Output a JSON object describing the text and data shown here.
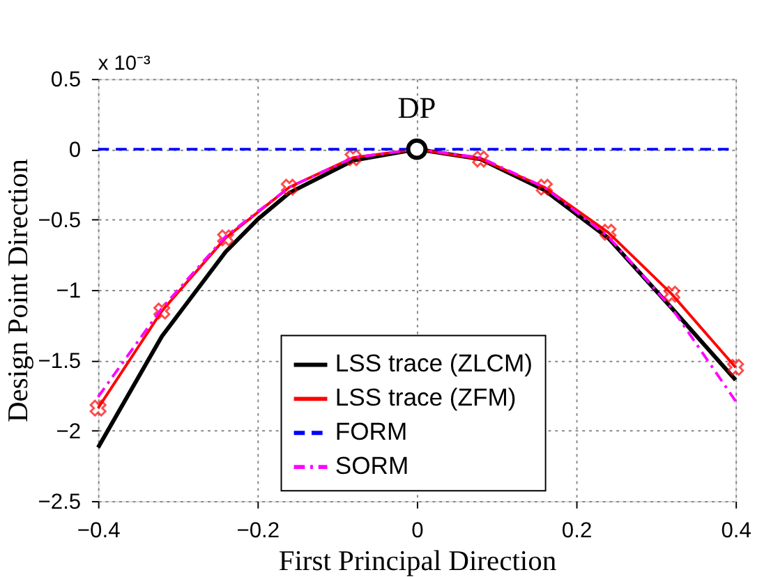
{
  "chart_data": {
    "type": "line",
    "xlabel": "First Principal Direction",
    "ylabel": "Design Point Direction",
    "annotations": [
      "x 10⁻³"
    ],
    "xlim": [
      -0.4,
      0.4
    ],
    "xticks": [
      -0.4,
      -0.2,
      0,
      0.2,
      0.4
    ],
    "ylim": [
      -2.5,
      0.5
    ],
    "yticks": [
      -2.5,
      -2,
      -1.5,
      -1,
      -0.5,
      0,
      0.5
    ],
    "grid": true,
    "legend": "bottom",
    "series": [
      {
        "name": "LSS trace (ZLCM)",
        "color": "#000000",
        "line_style": "solid",
        "marker": "none",
        "x": [
          -0.4,
          -0.32,
          -0.24,
          -0.2,
          -0.16,
          -0.08,
          0,
          0.08,
          0.16,
          0.24,
          0.32,
          0.4
        ],
        "values": [
          -2.12,
          -1.33,
          -0.73,
          -0.5,
          -0.31,
          -0.08,
          0,
          -0.07,
          -0.29,
          -0.63,
          -1.13,
          -1.64
        ]
      },
      {
        "name": "LSS trace (ZFM)",
        "color": "#ff0000",
        "line_style": "solid",
        "marker": "cross",
        "x": [
          -0.4,
          -0.32,
          -0.24,
          -0.16,
          -0.08,
          0,
          0.08,
          0.16,
          0.24,
          0.32,
          0.4
        ],
        "values": [
          -1.84,
          -1.15,
          -0.63,
          -0.27,
          -0.06,
          0,
          -0.07,
          -0.27,
          -0.59,
          -1.03,
          -1.55
        ]
      },
      {
        "name": "FORM",
        "color": "#0000ff",
        "line_style": "dashed",
        "marker": "none",
        "x": [
          -0.4,
          0.4
        ],
        "values": [
          0,
          0
        ]
      },
      {
        "name": "SORM",
        "color": "#ff00ff",
        "line_style": "dashdot",
        "marker": "none",
        "x": [
          -0.4,
          -0.32,
          -0.24,
          -0.16,
          -0.08,
          0,
          0.08,
          0.16,
          0.24,
          0.32,
          0.4
        ],
        "values": [
          -1.76,
          -1.13,
          -0.62,
          -0.27,
          -0.06,
          0,
          -0.06,
          -0.27,
          -0.62,
          -1.13,
          -1.79
        ]
      },
      {
        "name": "DP",
        "type": "scatter",
        "color": "#000000",
        "marker": "circle",
        "x": [
          0
        ],
        "values": [
          0
        ]
      }
    ]
  }
}
